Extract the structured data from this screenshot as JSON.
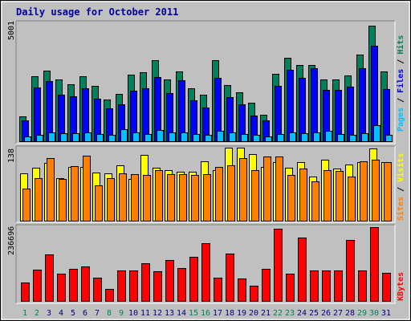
{
  "title": "Daily usage for October 2011",
  "colors": {
    "background": "#c0c0c0",
    "panel": "#c0c0c0",
    "hits": "#00805c",
    "files": "#0000ff",
    "pages": "#00c0ff",
    "visits": "#ffff00",
    "sites": "#ff8000",
    "kbytes": "#ff0000",
    "weekend": "#00805c",
    "weekday": "#000080"
  },
  "chart_data": [
    {
      "type": "bar",
      "panel": "hits-files-pages",
      "categories": [
        "1",
        "2",
        "3",
        "4",
        "5",
        "6",
        "7",
        "8",
        "9",
        "10",
        "11",
        "12",
        "13",
        "14",
        "15",
        "16",
        "17",
        "18",
        "19",
        "20",
        "21",
        "22",
        "23",
        "24",
        "25",
        "26",
        "27",
        "28",
        "29",
        "30",
        "31"
      ],
      "y_max_label": "5001",
      "ylim": [
        0,
        5001
      ],
      "legend": [
        {
          "name": "Pages",
          "key": "pages"
        },
        {
          "name": "Files",
          "key": "files"
        },
        {
          "name": "Hits",
          "key": "hits"
        }
      ],
      "separator": " / ",
      "series": [
        {
          "name": "Hits",
          "key": "hits",
          "values": [
            1050,
            2780,
            3000,
            2630,
            2430,
            2780,
            2350,
            1780,
            2030,
            2830,
            2930,
            3450,
            2630,
            2980,
            2270,
            1970,
            3450,
            2400,
            2100,
            1660,
            1120,
            2880,
            3550,
            3250,
            3250,
            2640,
            2640,
            2800,
            3700,
            4920,
            2970
          ]
        },
        {
          "name": "Files",
          "key": "files",
          "values": [
            890,
            2280,
            2580,
            1970,
            1920,
            2250,
            1800,
            1390,
            1570,
            2160,
            2250,
            2730,
            2060,
            2610,
            1740,
            1440,
            2720,
            1880,
            1580,
            1100,
            900,
            2350,
            3060,
            2700,
            3100,
            2180,
            2180,
            2320,
            3100,
            4070,
            2240
          ]
        },
        {
          "name": "Pages",
          "key": "pages",
          "values": [
            210,
            290,
            390,
            330,
            350,
            390,
            300,
            260,
            520,
            370,
            300,
            470,
            390,
            380,
            310,
            280,
            430,
            390,
            310,
            270,
            210,
            310,
            370,
            330,
            360,
            450,
            320,
            280,
            340,
            690,
            260
          ]
        }
      ]
    },
    {
      "type": "bar",
      "panel": "visits-sites",
      "categories": [
        "1",
        "2",
        "3",
        "4",
        "5",
        "6",
        "7",
        "8",
        "9",
        "10",
        "11",
        "12",
        "13",
        "14",
        "15",
        "16",
        "17",
        "18",
        "19",
        "20",
        "21",
        "22",
        "23",
        "24",
        "25",
        "26",
        "27",
        "28",
        "29",
        "30",
        "31"
      ],
      "y_max_label": "138",
      "ylim": [
        0,
        138
      ],
      "legend": [
        {
          "name": "Sites",
          "key": "sites"
        },
        {
          "name": "Visits",
          "key": "visits"
        }
      ],
      "separator": " / ",
      "series": [
        {
          "name": "Visits",
          "key": "visits",
          "values": [
            90,
            100,
            109,
            80,
            102,
            102,
            91,
            90,
            104,
            79,
            124,
            100,
            95,
            93,
            92,
            112,
            96,
            138,
            138,
            126,
            101,
            111,
            100,
            111,
            83,
            116,
            99,
            106,
            110,
            137,
            111
          ]
        },
        {
          "name": "Sites",
          "key": "sites",
          "values": [
            60,
            80,
            119,
            79,
            103,
            123,
            67,
            80,
            89,
            88,
            86,
            96,
            88,
            88,
            86,
            88,
            101,
            105,
            118,
            95,
            121,
            122,
            87,
            98,
            75,
            95,
            94,
            84,
            112,
            115,
            111
          ]
        }
      ]
    },
    {
      "type": "bar",
      "panel": "kbytes",
      "categories": [
        "1",
        "2",
        "3",
        "4",
        "5",
        "6",
        "7",
        "8",
        "9",
        "10",
        "11",
        "12",
        "13",
        "14",
        "15",
        "16",
        "17",
        "18",
        "19",
        "20",
        "21",
        "22",
        "23",
        "24",
        "25",
        "26",
        "27",
        "28",
        "29",
        "30",
        "31"
      ],
      "y_max_label": "236696",
      "ylim": [
        0,
        236696
      ],
      "legend": [
        {
          "name": "KBytes",
          "key": "kbytes"
        }
      ],
      "series": [
        {
          "name": "KBytes",
          "key": "kbytes",
          "values": [
            60000,
            100000,
            148000,
            87000,
            104000,
            111000,
            74000,
            38000,
            98000,
            98000,
            122000,
            94000,
            130000,
            105000,
            142000,
            186000,
            75000,
            153000,
            73000,
            49000,
            104000,
            231000,
            87000,
            202000,
            98000,
            98000,
            97000,
            196000,
            98000,
            236696,
            89000
          ]
        }
      ]
    }
  ],
  "x_axis": {
    "labels": [
      "1",
      "2",
      "3",
      "4",
      "5",
      "6",
      "7",
      "8",
      "9",
      "10",
      "11",
      "12",
      "13",
      "14",
      "15",
      "16",
      "17",
      "18",
      "19",
      "20",
      "21",
      "22",
      "23",
      "24",
      "25",
      "26",
      "27",
      "28",
      "29",
      "30",
      "31"
    ],
    "weekend_days": [
      "1",
      "2",
      "8",
      "9",
      "15",
      "16",
      "22",
      "23",
      "29",
      "30"
    ]
  }
}
